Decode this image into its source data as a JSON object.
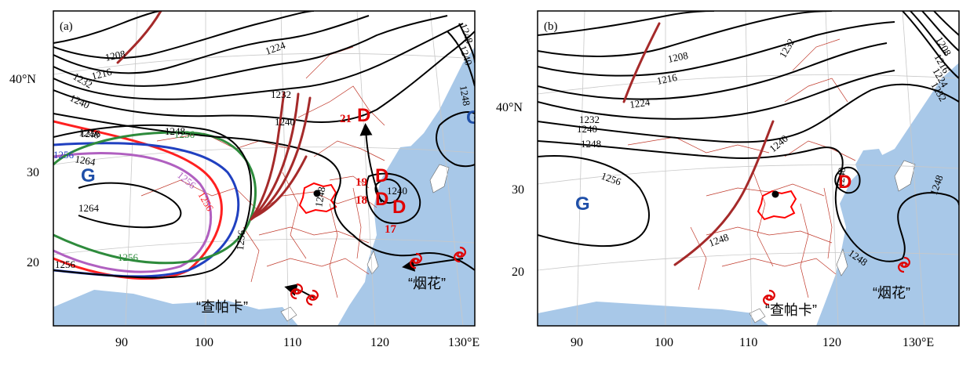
{
  "panels": [
    {
      "tag": "(a)",
      "lat_labels": [
        "40°N",
        "30",
        "20"
      ],
      "lon_labels": [
        "90",
        "100",
        "110",
        "120",
        "130°E"
      ],
      "contour_labels": [
        "1208",
        "1216",
        "1224",
        "1232",
        "1232",
        "1240",
        "1240",
        "1240",
        "1248",
        "1248",
        "1248",
        "1248",
        "1256",
        "1256",
        "1256",
        "1264",
        "1240",
        "1248",
        "1256",
        "1256",
        "1264",
        "1256",
        "1256",
        "1256"
      ],
      "high_letter": "G",
      "low_letter": "D",
      "low_letter_sea": "G",
      "track_numbers": [
        "21",
        "19",
        "18",
        "17"
      ],
      "typhoon_names": [
        "“查帕卡”",
        "“烟花”"
      ]
    },
    {
      "tag": "(b)",
      "lat_labels": [
        "40°N",
        "30",
        "20"
      ],
      "lon_labels": [
        "90",
        "100",
        "110",
        "120",
        "130°E"
      ],
      "contour_labels": [
        "1208",
        "1216",
        "1224",
        "1232",
        "1232",
        "1240",
        "1240",
        "1248",
        "1256",
        "1248",
        "1248",
        "1248",
        "1240",
        "1208",
        "1216",
        "1224",
        "1232"
      ],
      "high_letter": "G",
      "low_letter": "D",
      "typhoon_names": [
        "“查帕卡”",
        "“烟花”"
      ]
    }
  ],
  "colors": {
    "land": "#ffffff",
    "sea": "#a8c8e8",
    "contour": "#000000",
    "trough": "#a52a2a",
    "border": "#c0392b",
    "rain_region": "#ff0000",
    "high_letter": "#1f4fa8",
    "low_letter": "#e00000",
    "green_contour": "#2e8b3c",
    "blue_contour": "#2040c0",
    "purple_contour": "#b060c0",
    "red_contour": "#ff2020"
  },
  "icons": [
    "typhoon-icon",
    "station-dot-icon",
    "track-arrow-icon"
  ]
}
